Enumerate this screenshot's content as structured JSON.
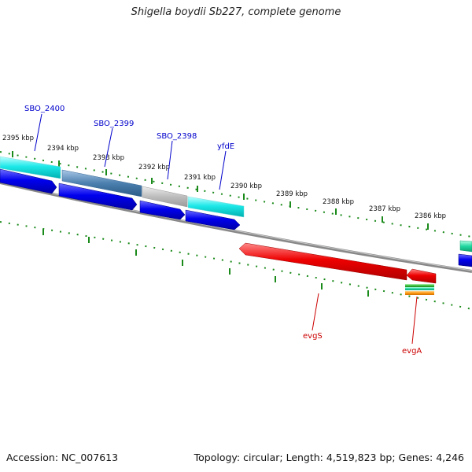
{
  "title": "Shigella boydii Sb227, complete genome",
  "accession": "Accession: NC_007613",
  "summary": "Topology: circular; Length: 4,519,823 bp; Genes: 4,246",
  "scale_labels": [
    "2395 kbp",
    "2394 kbp",
    "2393 kbp",
    "2392 kbp",
    "2391 kbp",
    "2390 kbp",
    "2389 kbp",
    "2388 kbp",
    "2387 kbp",
    "2386 kbp"
  ],
  "gene_labels": {
    "sbo2400": "SBO_2400",
    "sbo2399": "SBO_2399",
    "sbo2398": "SBO_2398",
    "yfdE": "yfdE",
    "evgS": "evgS",
    "evgA": "evgA"
  },
  "colors": {
    "forward_gene": "#00e5e5",
    "forward_cds": "#0000ee",
    "reverse_gene": "#ee0000",
    "backbone": "#888888",
    "ticks": "#1a8a1a",
    "label_top": "#0000cc",
    "label_bottom": "#cc0000"
  }
}
